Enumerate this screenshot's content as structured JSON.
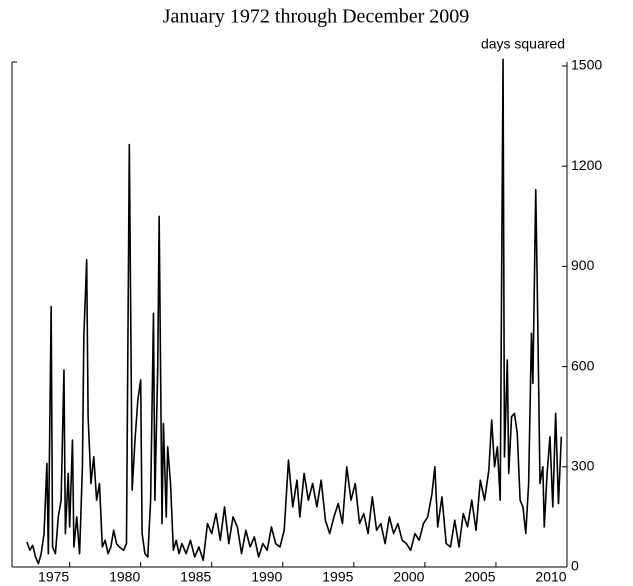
{
  "chart_data": {
    "type": "line",
    "title": "January 1972 through December 2009",
    "y_label": "days squared",
    "x": [
      1972.0,
      1972.2,
      1972.4,
      1972.6,
      1972.8,
      1973.0,
      1973.2,
      1973.4,
      1973.5,
      1973.7,
      1973.8,
      1974.0,
      1974.2,
      1974.4,
      1974.6,
      1974.7,
      1974.9,
      1975.0,
      1975.2,
      1975.3,
      1975.5,
      1975.7,
      1975.9,
      1976.0,
      1976.2,
      1976.3,
      1976.5,
      1976.7,
      1976.9,
      1977.1,
      1977.3,
      1977.5,
      1977.7,
      1977.9,
      1978.1,
      1978.3,
      1978.5,
      1978.8,
      1979.0,
      1979.2,
      1979.4,
      1979.6,
      1979.8,
      1980.0,
      1980.1,
      1980.3,
      1980.5,
      1980.7,
      1980.9,
      1981.0,
      1981.2,
      1981.3,
      1981.5,
      1981.6,
      1981.8,
      1981.9,
      1982.1,
      1982.3,
      1982.5,
      1982.7,
      1982.9,
      1983.2,
      1983.5,
      1983.8,
      1984.1,
      1984.4,
      1984.7,
      1985.0,
      1985.3,
      1985.6,
      1985.9,
      1986.2,
      1986.5,
      1986.8,
      1987.1,
      1987.4,
      1987.7,
      1988.0,
      1988.3,
      1988.6,
      1988.9,
      1989.2,
      1989.5,
      1989.8,
      1990.1,
      1990.4,
      1990.7,
      1991.0,
      1991.2,
      1991.5,
      1991.8,
      1992.1,
      1992.4,
      1992.7,
      1993.0,
      1993.3,
      1993.6,
      1993.9,
      1994.2,
      1994.5,
      1994.8,
      1995.1,
      1995.4,
      1995.7,
      1996.0,
      1996.3,
      1996.6,
      1996.9,
      1997.2,
      1997.5,
      1997.8,
      1998.1,
      1998.4,
      1998.7,
      1999.0,
      1999.3,
      1999.6,
      1999.9,
      2000.2,
      2000.5,
      2000.7,
      2000.9,
      2001.2,
      2001.5,
      2001.8,
      2002.1,
      2002.4,
      2002.7,
      2003.0,
      2003.3,
      2003.6,
      2003.9,
      2004.2,
      2004.5,
      2004.7,
      2004.9,
      2005.1,
      2005.3,
      2005.5,
      2005.6,
      2005.8,
      2005.9,
      2006.1,
      2006.3,
      2006.5,
      2006.7,
      2006.9,
      2007.1,
      2007.3,
      2007.5,
      2007.6,
      2007.8,
      2007.9,
      2008.1,
      2008.3,
      2008.4,
      2008.6,
      2008.8,
      2009.0,
      2009.2,
      2009.4,
      2009.6
    ],
    "series": [
      {
        "color": "#000000",
        "values": [
          75,
          50,
          65,
          30,
          10,
          40,
          100,
          310,
          40,
          780,
          60,
          40,
          150,
          200,
          590,
          100,
          280,
          120,
          380,
          60,
          150,
          40,
          300,
          690,
          920,
          450,
          250,
          330,
          200,
          250,
          60,
          80,
          40,
          60,
          110,
          70,
          60,
          50,
          70,
          1265,
          230,
          380,
          500,
          560,
          100,
          40,
          30,
          200,
          760,
          200,
          600,
          1050,
          130,
          430,
          150,
          360,
          250,
          50,
          80,
          40,
          70,
          40,
          80,
          30,
          60,
          20,
          130,
          100,
          160,
          80,
          180,
          70,
          150,
          120,
          40,
          110,
          60,
          90,
          30,
          70,
          50,
          120,
          70,
          60,
          110,
          320,
          180,
          260,
          150,
          280,
          200,
          250,
          180,
          260,
          140,
          100,
          150,
          190,
          130,
          300,
          200,
          250,
          130,
          160,
          100,
          210,
          110,
          130,
          70,
          150,
          100,
          130,
          80,
          70,
          50,
          100,
          80,
          130,
          150,
          220,
          300,
          120,
          210,
          70,
          60,
          140,
          60,
          160,
          120,
          200,
          110,
          260,
          200,
          290,
          440,
          300,
          360,
          200,
          1520,
          330,
          620,
          280,
          450,
          460,
          400,
          200,
          180,
          100,
          250,
          700,
          550,
          1130,
          860,
          250,
          300,
          120,
          280,
          390,
          180,
          460,
          190,
          390
        ]
      }
    ],
    "xlim": [
      1972,
      2010
    ],
    "xticks": [
      1975,
      1980,
      1985,
      1990,
      1995,
      2000,
      2005,
      2010
    ],
    "ylim": [
      0,
      1500
    ],
    "yticks": [
      0,
      300,
      600,
      900,
      1200,
      1500
    ],
    "grid": false
  }
}
